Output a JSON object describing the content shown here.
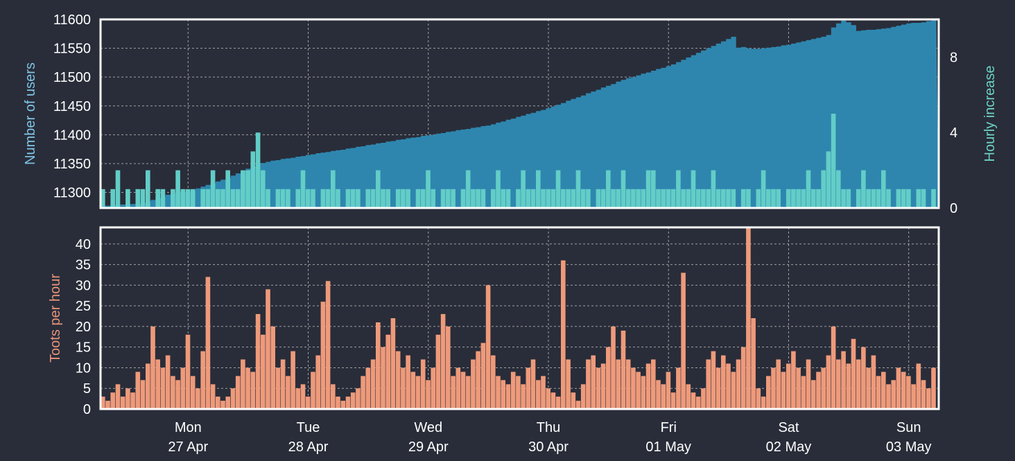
{
  "chart_data": [
    {
      "type": "area+bar",
      "xlabel": "",
      "x_range": [
        "26 Apr 06:30",
        "03 May 06:00"
      ],
      "resolution": "hourly",
      "x_ticks": [
        {
          "day": "Mon",
          "date": "27 Apr"
        },
        {
          "day": "Tue",
          "date": "28 Apr"
        },
        {
          "day": "Wed",
          "date": "29 Apr"
        },
        {
          "day": "Thu",
          "date": "30 Apr"
        },
        {
          "day": "Fri",
          "date": "01 May"
        },
        {
          "day": "Sat",
          "date": "02 May"
        },
        {
          "day": "Sun",
          "date": "03 May"
        }
      ],
      "grid": true,
      "left_axis": {
        "label": "Number of users",
        "color": "#7ec6e6",
        "ylim": [
          11273,
          11600
        ],
        "ticks": [
          "11300",
          "11350",
          "11400",
          "11450",
          "11500",
          "11550",
          "11600"
        ]
      },
      "right_axis": {
        "label": "Hourly increase",
        "color": "#6dd3c6",
        "ylim": [
          0,
          10
        ],
        "ticks": [
          "0",
          "4",
          "8"
        ]
      },
      "series": [
        {
          "axis": "left",
          "kind": "area",
          "color": "#2e86ae",
          "values": [
            11277,
            11277,
            11278,
            11278,
            11279,
            11279,
            11280,
            11280,
            11282,
            11284,
            11287,
            11290,
            11293,
            11296,
            11298,
            11299,
            11300,
            11302,
            11304,
            11307,
            11310,
            11313,
            11316,
            11319,
            11322,
            11325,
            11329,
            11333,
            11337,
            11341,
            11345,
            11349,
            11351,
            11353,
            11355,
            11356,
            11358,
            11359,
            11360,
            11362,
            11363,
            11365,
            11366,
            11368,
            11369,
            11370,
            11372,
            11373,
            11374,
            11376,
            11377,
            11379,
            11380,
            11382,
            11383,
            11385,
            11386,
            11388,
            11389,
            11391,
            11392,
            11394,
            11395,
            11396,
            11398,
            11399,
            11400,
            11402,
            11403,
            11405,
            11406,
            11408,
            11409,
            11410,
            11412,
            11413,
            11415,
            11416,
            11418,
            11421,
            11423,
            11426,
            11428,
            11431,
            11433,
            11436,
            11438,
            11441,
            11443,
            11446,
            11449,
            11452,
            11455,
            11459,
            11462,
            11465,
            11468,
            11472,
            11475,
            11478,
            11482,
            11485,
            11488,
            11492,
            11495,
            11498,
            11500,
            11503,
            11506,
            11508,
            11511,
            11514,
            11516,
            11519,
            11522,
            11526,
            11530,
            11534,
            11538,
            11542,
            11546,
            11550,
            11554,
            11558,
            11562,
            11566,
            11570,
            11551,
            11552,
            11550,
            11549,
            11549,
            11550,
            11551,
            11552,
            11553,
            11555,
            11556,
            11558,
            11560,
            11562,
            11564,
            11566,
            11568,
            11570,
            11573,
            11586,
            11593,
            11598,
            11595,
            11590,
            11580,
            11581,
            11582,
            11582,
            11583,
            11584,
            11585,
            11587,
            11589,
            11591,
            11593,
            11594,
            11594,
            11595,
            11597,
            11599
          ]
        },
        {
          "axis": "right",
          "kind": "bar",
          "color": "#63cdc7",
          "values": [
            1,
            0,
            1,
            2,
            0,
            1,
            0,
            1,
            1,
            2,
            0,
            1,
            1,
            0,
            1,
            2,
            1,
            1,
            1,
            0,
            1,
            1,
            2,
            1,
            1,
            2,
            1,
            1,
            2,
            2,
            3,
            4,
            2,
            1,
            0,
            1,
            1,
            1,
            0,
            1,
            2,
            1,
            1,
            0,
            1,
            1,
            2,
            1,
            0,
            1,
            1,
            1,
            0,
            1,
            1,
            2,
            1,
            1,
            0,
            1,
            1,
            1,
            0,
            1,
            1,
            2,
            1,
            0,
            1,
            1,
            1,
            0,
            1,
            2,
            1,
            1,
            1,
            0,
            1,
            2,
            1,
            1,
            0,
            1,
            2,
            1,
            1,
            2,
            1,
            1,
            1,
            2,
            1,
            1,
            1,
            2,
            1,
            1,
            0,
            1,
            1,
            2,
            1,
            1,
            2,
            1,
            1,
            1,
            1,
            2,
            2,
            1,
            1,
            1,
            1,
            2,
            1,
            1,
            2,
            1,
            1,
            1,
            2,
            1,
            1,
            1,
            1,
            0,
            1,
            1,
            0,
            1,
            2,
            1,
            1,
            1,
            0,
            1,
            1,
            1,
            1,
            2,
            1,
            1,
            2,
            3,
            5,
            2,
            1,
            1,
            0,
            1,
            2,
            1,
            1,
            1,
            2,
            1,
            0,
            1,
            1,
            1,
            0,
            1,
            1,
            0,
            1
          ]
        }
      ]
    },
    {
      "type": "bar",
      "xlabel": "",
      "x_range": [
        "26 Apr 06:30",
        "03 May 06:00"
      ],
      "resolution": "hourly",
      "grid": true,
      "left_axis": {
        "label": "Toots per hour",
        "color": "#e8937a",
        "ylim": [
          0,
          44
        ],
        "ticks": [
          "0",
          "5",
          "10",
          "15",
          "20",
          "25",
          "30",
          "35",
          "40"
        ]
      },
      "series": [
        {
          "kind": "bar",
          "color": "#ee9a7b",
          "values": [
            3,
            2,
            4,
            6,
            3,
            5,
            4,
            9,
            7,
            11,
            20,
            12,
            10,
            13,
            8,
            7,
            10,
            18,
            8,
            5,
            14,
            32,
            6,
            3,
            2,
            3,
            5,
            8,
            12,
            10,
            9,
            23,
            18,
            29,
            20,
            10,
            12,
            8,
            14,
            5,
            6,
            3,
            9,
            13,
            26,
            31,
            6,
            3,
            2,
            3,
            4,
            5,
            8,
            10,
            12,
            21,
            15,
            18,
            22,
            14,
            10,
            13,
            9,
            8,
            12,
            7,
            10,
            18,
            23,
            20,
            8,
            10,
            9,
            8,
            12,
            14,
            16,
            30,
            13,
            8,
            7,
            6,
            9,
            8,
            6,
            10,
            12,
            7,
            8,
            5,
            4,
            3,
            36,
            12,
            4,
            2,
            6,
            12,
            13,
            10,
            11,
            15,
            20,
            12,
            19,
            12,
            10,
            9,
            8,
            11,
            12,
            7,
            6,
            9,
            4,
            10,
            33,
            6,
            4,
            3,
            5,
            12,
            14,
            10,
            13,
            11,
            9,
            12,
            15,
            44,
            22,
            5,
            3,
            8,
            10,
            12,
            9,
            11,
            14,
            10,
            8,
            12,
            7,
            9,
            10,
            13,
            20,
            12,
            14,
            11,
            17,
            12,
            15,
            10,
            13,
            8,
            9,
            6,
            7,
            10,
            9,
            8,
            6,
            11,
            7,
            5,
            10
          ]
        }
      ]
    }
  ]
}
